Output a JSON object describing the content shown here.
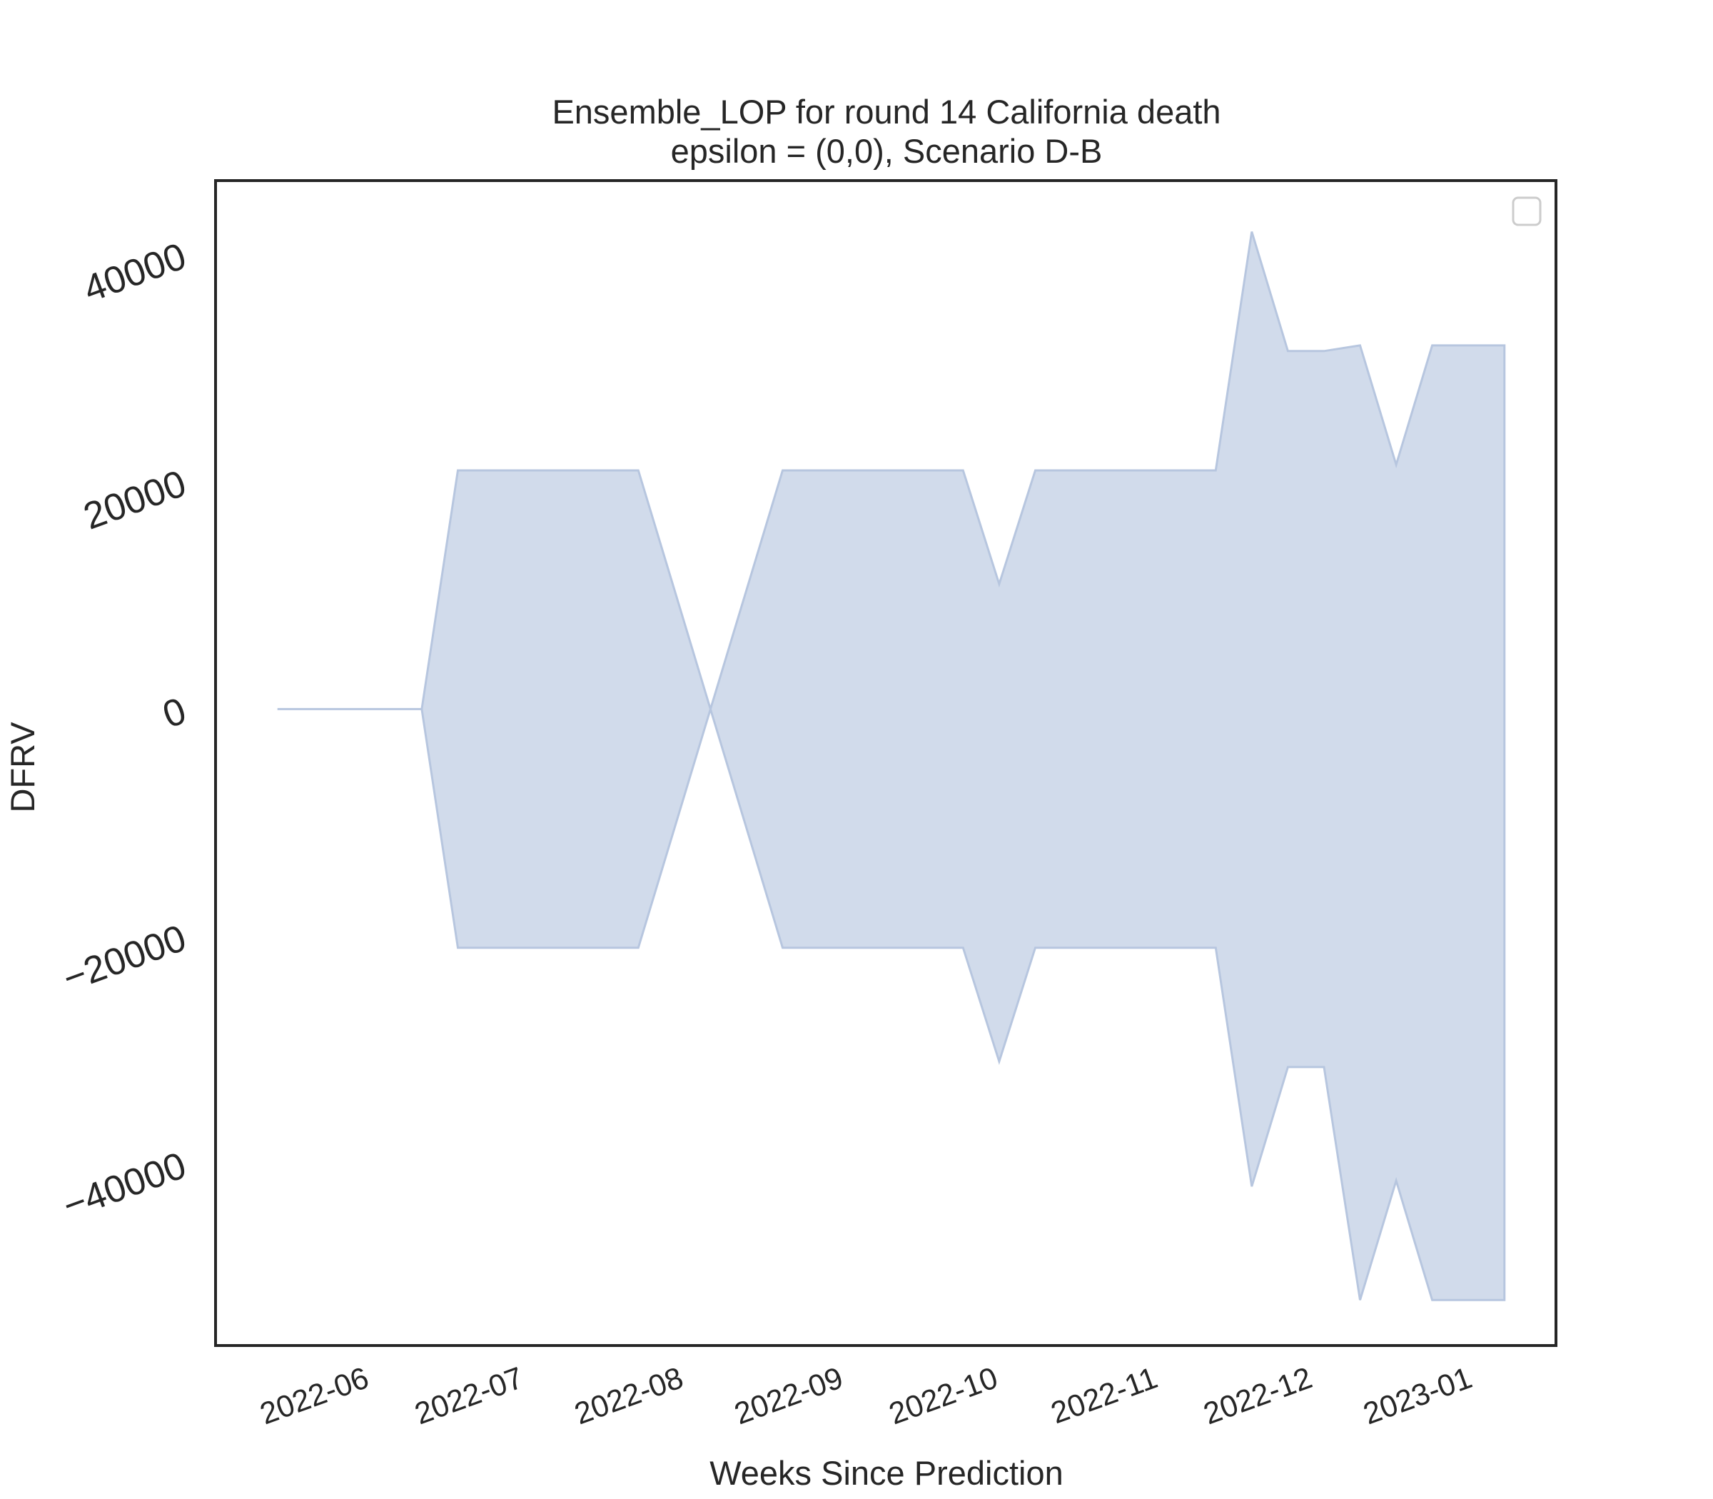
{
  "chart_data": {
    "type": "area",
    "title": "Ensemble_LOP for round 14 California death",
    "subtitle": "epsilon = (0,0), Scenario D-B",
    "xlabel": "Weeks Since Prediction",
    "ylabel": "DFRV",
    "x_tick_labels": [
      "2022-06",
      "2022-07",
      "2022-08",
      "2022-09",
      "2022-10",
      "2022-11",
      "2022-12",
      "2023-01"
    ],
    "y_tick_labels": [
      "−40000",
      "−20000",
      "0",
      "20000",
      "40000"
    ],
    "y_tick_values": [
      -40000,
      -20000,
      0,
      20000,
      40000
    ],
    "ylim": [
      -56000,
      46500
    ],
    "xlim": [
      "2022-05-03",
      "2023-01-18"
    ],
    "legend": {
      "position": "top-right",
      "entries": []
    },
    "grid": false,
    "fill_color": "#d1dbeb",
    "edge_color": "#b7c6df",
    "series": [
      {
        "x": [
          "2022-05-15",
          "2022-05-22",
          "2022-05-29",
          "2022-06-05",
          "2022-06-12",
          "2022-06-19",
          "2022-06-26",
          "2022-07-03",
          "2022-07-10",
          "2022-07-17",
          "2022-07-24",
          "2022-07-31",
          "2022-08-07",
          "2022-08-14",
          "2022-08-21",
          "2022-08-28",
          "2022-09-04",
          "2022-09-11",
          "2022-09-18",
          "2022-09-25",
          "2022-10-02",
          "2022-10-09",
          "2022-10-16",
          "2022-10-23",
          "2022-10-30",
          "2022-11-06",
          "2022-11-13",
          "2022-11-20",
          "2022-11-27",
          "2022-12-04",
          "2022-12-11",
          "2022-12-18",
          "2022-12-25",
          "2023-01-01",
          "2023-01-08"
        ],
        "lower": [
          0,
          0,
          0,
          0,
          0,
          -21000,
          -21000,
          -21000,
          -21000,
          -21000,
          -21000,
          -10500,
          0,
          -10500,
          -21000,
          -21000,
          -21000,
          -21000,
          -21000,
          -21000,
          -31000,
          -21000,
          -21000,
          -21000,
          -21000,
          -21000,
          -21000,
          -42000,
          -31500,
          -31500,
          -52000,
          -41500,
          -52000,
          -52000,
          -52000
        ],
        "upper": [
          0,
          0,
          0,
          0,
          0,
          21000,
          21000,
          21000,
          21000,
          21000,
          21000,
          10500,
          0,
          10500,
          21000,
          21000,
          21000,
          21000,
          21000,
          21000,
          11000,
          21000,
          21000,
          21000,
          21000,
          21000,
          21000,
          42000,
          31500,
          31500,
          32000,
          21500,
          32000,
          32000,
          32000
        ]
      }
    ]
  }
}
